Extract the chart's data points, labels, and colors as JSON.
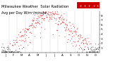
{
  "title": "Milwaukee Weather  Solar Radiation",
  "subtitle": "Avg per Day W/m²/minute",
  "background_color": "#ffffff",
  "plot_bg_color": "#ffffff",
  "dot_color_main": "#cc0000",
  "dot_color_dark": "#111111",
  "legend_bg": "#cc0000",
  "legend_dot_color": "#ffaaaa",
  "ylim": [
    0,
    9
  ],
  "ytick_vals": [
    1,
    2,
    3,
    4,
    5,
    6,
    7,
    8
  ],
  "ylabel_fontsize": 3.0,
  "title_fontsize": 3.8,
  "xticklabel_fontsize": 2.8,
  "dot_size": 0.5,
  "num_points": 365
}
